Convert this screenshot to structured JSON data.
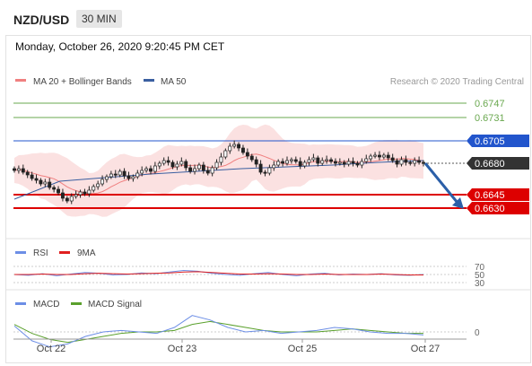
{
  "header": {
    "pair": "NZD/USD",
    "timeframe": "30 MIN"
  },
  "timestamp": "Monday, October 26, 2020 9:20:45 PM CET",
  "legend": {
    "ma20_label": "MA 20 + Bollinger Bands",
    "ma50_label": "MA 50",
    "credit": "Research © 2020 Trading Central",
    "rsi_label": "RSI",
    "rsi_ma_label": "9MA",
    "macd_label": "MACD",
    "macd_signal_label": "MACD Signal"
  },
  "colors": {
    "resistance": "#6aa84f",
    "pivot": "#2255cc",
    "support": "#dd0000",
    "last": "#333333",
    "bollinger": "#f7c9c9",
    "ma20": "#f08080",
    "ma50": "#3a5fa0",
    "rsi": "#6c8ee6",
    "rsi_ma": "#e02020",
    "macd": "#6c8ee6",
    "macd_signal": "#5aa02c",
    "arrow": "#2b5fa8"
  },
  "chart_data": [
    {
      "type": "candlestick",
      "x_labels": [
        "Oct 22",
        "Oct 23",
        "Oct 25",
        "Oct 27"
      ],
      "ylim": [
        0.6617,
        0.6762
      ],
      "levels": [
        {
          "value": 0.6747,
          "label": "0.6747",
          "kind": "resistance"
        },
        {
          "value": 0.6731,
          "label": "0.6731",
          "kind": "resistance"
        },
        {
          "value": 0.6705,
          "label": "0.6705",
          "kind": "pivot"
        },
        {
          "value": 0.668,
          "label": "0.6680",
          "kind": "last"
        },
        {
          "value": 0.6645,
          "label": "0.6645",
          "kind": "support"
        },
        {
          "value": 0.663,
          "label": "0.6630",
          "kind": "support"
        }
      ],
      "close": [
        0.6672,
        0.6674,
        0.667,
        0.6667,
        0.6663,
        0.6661,
        0.6657,
        0.6659,
        0.6653,
        0.6651,
        0.6647,
        0.6641,
        0.6638,
        0.6643,
        0.6645,
        0.6648,
        0.6646,
        0.665,
        0.6654,
        0.6657,
        0.6662,
        0.6665,
        0.6668,
        0.6667,
        0.6671,
        0.6666,
        0.6663,
        0.6665,
        0.6669,
        0.6672,
        0.6674,
        0.6671,
        0.6677,
        0.668,
        0.6683,
        0.6681,
        0.6676,
        0.6679,
        0.6682,
        0.6675,
        0.6671,
        0.6674,
        0.6678,
        0.6672,
        0.6669,
        0.6675,
        0.6681,
        0.6687,
        0.6694,
        0.6699,
        0.6701,
        0.6697,
        0.6692,
        0.6688,
        0.6684,
        0.6679,
        0.667,
        0.6669,
        0.6675,
        0.6678,
        0.6682,
        0.668,
        0.6683,
        0.6684,
        0.6682,
        0.6677,
        0.6681,
        0.6684,
        0.6686,
        0.668,
        0.6683,
        0.6684,
        0.6682,
        0.668,
        0.6681,
        0.6679,
        0.6682,
        0.668,
        0.6678,
        0.6682,
        0.6685,
        0.6688,
        0.6689,
        0.6687,
        0.6689,
        0.6686,
        0.6683,
        0.6679,
        0.6684,
        0.6681,
        0.668,
        0.6683,
        0.6681,
        0.668
      ],
      "ma50": [
        0.664,
        0.666,
        0.6664,
        0.6668,
        0.6671,
        0.6674,
        0.6676,
        0.6678,
        0.6681,
        0.6683
      ],
      "rsi": [
        50,
        48,
        52,
        47,
        51,
        55,
        53,
        49,
        50,
        54,
        52,
        56,
        60,
        58,
        53,
        50,
        48,
        52,
        55,
        50,
        47,
        51,
        53,
        49,
        51,
        50,
        52,
        49,
        48,
        50
      ],
      "rsi_ma": [
        50,
        50,
        51,
        50,
        50,
        52,
        53,
        52,
        51,
        52,
        53,
        54,
        56,
        57,
        55,
        53,
        51,
        51,
        52,
        51,
        50,
        50,
        51,
        50,
        50,
        50,
        51,
        50,
        49,
        49
      ],
      "rsi_ticks": [
        "70",
        "50",
        "30"
      ],
      "macd": [
        0.0004,
        -0.0006,
        -0.001,
        -0.0008,
        -0.0003,
        0.0,
        0.0001,
        0.0,
        -0.0001,
        0.0003,
        0.0011,
        0.0008,
        0.0003,
        0.0,
        0.0001,
        -0.0001,
        0.0,
        0.0001,
        0.0003,
        0.0002,
        0.0,
        -0.0001,
        -0.0001,
        -0.0002
      ],
      "macd_signal": [
        0.0005,
        -0.0001,
        -0.0005,
        -0.0007,
        -0.0005,
        -0.0003,
        -0.0001,
        0.0,
        0.0,
        0.0001,
        0.0005,
        0.0007,
        0.0005,
        0.0003,
        0.0001,
        0.0,
        0.0,
        0.0,
        0.0001,
        0.0002,
        0.0001,
        0.0,
        -0.0001,
        -0.0001
      ],
      "macd_ticks": [
        "0"
      ]
    }
  ]
}
